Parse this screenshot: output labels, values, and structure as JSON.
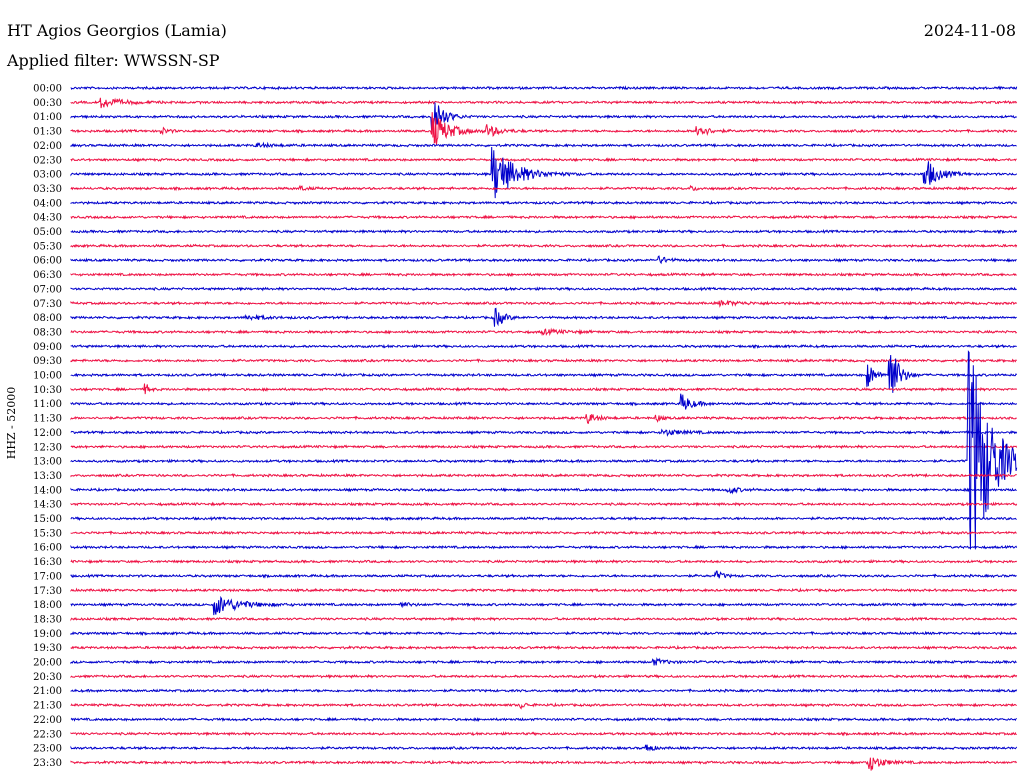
{
  "header": {
    "station": "HT Agios Georgios (Lamia)",
    "date": "2024-11-08",
    "filter": "Applied filter: WWSSN-SP"
  },
  "chart_data": {
    "type": "line",
    "title": "HT Agios Georgios (Lamia)",
    "subtitle": "Applied filter: WWSSN-SP",
    "ylabel": "HHZ - 52000",
    "xlabel": "",
    "colors": [
      "#0000cc",
      "#ee1144"
    ],
    "rows": [
      "00:00",
      "00:30",
      "01:00",
      "01:30",
      "02:00",
      "02:30",
      "03:00",
      "03:30",
      "04:00",
      "04:30",
      "05:00",
      "05:30",
      "06:00",
      "06:30",
      "07:00",
      "07:30",
      "08:00",
      "08:30",
      "09:00",
      "09:30",
      "10:00",
      "10:30",
      "11:00",
      "11:30",
      "12:00",
      "12:30",
      "13:00",
      "13:30",
      "14:00",
      "14:30",
      "15:00",
      "15:30",
      "16:00",
      "16:30",
      "17:00",
      "17:30",
      "18:00",
      "18:30",
      "19:00",
      "19:30",
      "20:00",
      "20:30",
      "21:00",
      "21:30",
      "22:00",
      "22:30",
      "23:00",
      "23:30"
    ],
    "row_minutes": 30,
    "events": [
      {
        "row": "00:30",
        "minute": 1.0,
        "amplitude": 5,
        "duration": 1.2
      },
      {
        "row": "01:00",
        "minute": 11.5,
        "amplitude": 24,
        "duration": 0.6
      },
      {
        "row": "01:30",
        "minute": 11.5,
        "amplitude": 18,
        "duration": 1.0
      },
      {
        "row": "01:30",
        "minute": 13.2,
        "amplitude": 6,
        "duration": 0.8
      },
      {
        "row": "01:30",
        "minute": 2.9,
        "amplitude": 3,
        "duration": 0.4
      },
      {
        "row": "01:30",
        "minute": 19.9,
        "amplitude": 7,
        "duration": 0.6
      },
      {
        "row": "02:00",
        "minute": 5.9,
        "amplitude": 2,
        "duration": 1.0
      },
      {
        "row": "03:00",
        "minute": 13.4,
        "amplitude": 28,
        "duration": 1.4
      },
      {
        "row": "03:00",
        "minute": 27.1,
        "amplitude": 16,
        "duration": 0.8
      },
      {
        "row": "03:30",
        "minute": 7.3,
        "amplitude": 2,
        "duration": 0.4
      },
      {
        "row": "03:30",
        "minute": 19.7,
        "amplitude": 2,
        "duration": 0.4
      },
      {
        "row": "06:00",
        "minute": 18.7,
        "amplitude": 3,
        "duration": 0.6
      },
      {
        "row": "07:30",
        "minute": 20.6,
        "amplitude": 2,
        "duration": 1.6
      },
      {
        "row": "08:00",
        "minute": 13.5,
        "amplitude": 9,
        "duration": 0.5
      },
      {
        "row": "08:00",
        "minute": 5.6,
        "amplitude": 2,
        "duration": 1.2
      },
      {
        "row": "08:30",
        "minute": 15.0,
        "amplitude": 2,
        "duration": 1.5
      },
      {
        "row": "10:00",
        "minute": 25.3,
        "amplitude": 12,
        "duration": 0.4
      },
      {
        "row": "10:00",
        "minute": 26.0,
        "amplitude": 34,
        "duration": 0.5
      },
      {
        "row": "10:30",
        "minute": 2.4,
        "amplitude": 5,
        "duration": 0.2
      },
      {
        "row": "11:00",
        "minute": 19.4,
        "amplitude": 9,
        "duration": 0.6
      },
      {
        "row": "11:30",
        "minute": 16.4,
        "amplitude": 5,
        "duration": 0.6
      },
      {
        "row": "11:30",
        "minute": 18.6,
        "amplitude": 3,
        "duration": 0.3
      },
      {
        "row": "12:00",
        "minute": 18.8,
        "amplitude": 3,
        "duration": 1.2
      },
      {
        "row": "13:00",
        "minute": 28.5,
        "amplitude": 130,
        "duration": 1.3
      },
      {
        "row": "14:00",
        "minute": 20.9,
        "amplitude": 3,
        "duration": 0.6
      },
      {
        "row": "17:00",
        "minute": 20.5,
        "amplitude": 4,
        "duration": 0.4
      },
      {
        "row": "18:00",
        "minute": 4.6,
        "amplitude": 10,
        "duration": 1.5
      },
      {
        "row": "18:00",
        "minute": 10.5,
        "amplitude": 2,
        "duration": 0.6
      },
      {
        "row": "20:00",
        "minute": 18.5,
        "amplitude": 3,
        "duration": 0.8
      },
      {
        "row": "21:30",
        "minute": 14.3,
        "amplitude": 3,
        "duration": 0.3
      },
      {
        "row": "23:00",
        "minute": 18.3,
        "amplitude": 5,
        "duration": 0.3
      },
      {
        "row": "23:30",
        "minute": 25.3,
        "amplitude": 9,
        "duration": 0.8
      }
    ],
    "grid": false,
    "legend": "none"
  }
}
